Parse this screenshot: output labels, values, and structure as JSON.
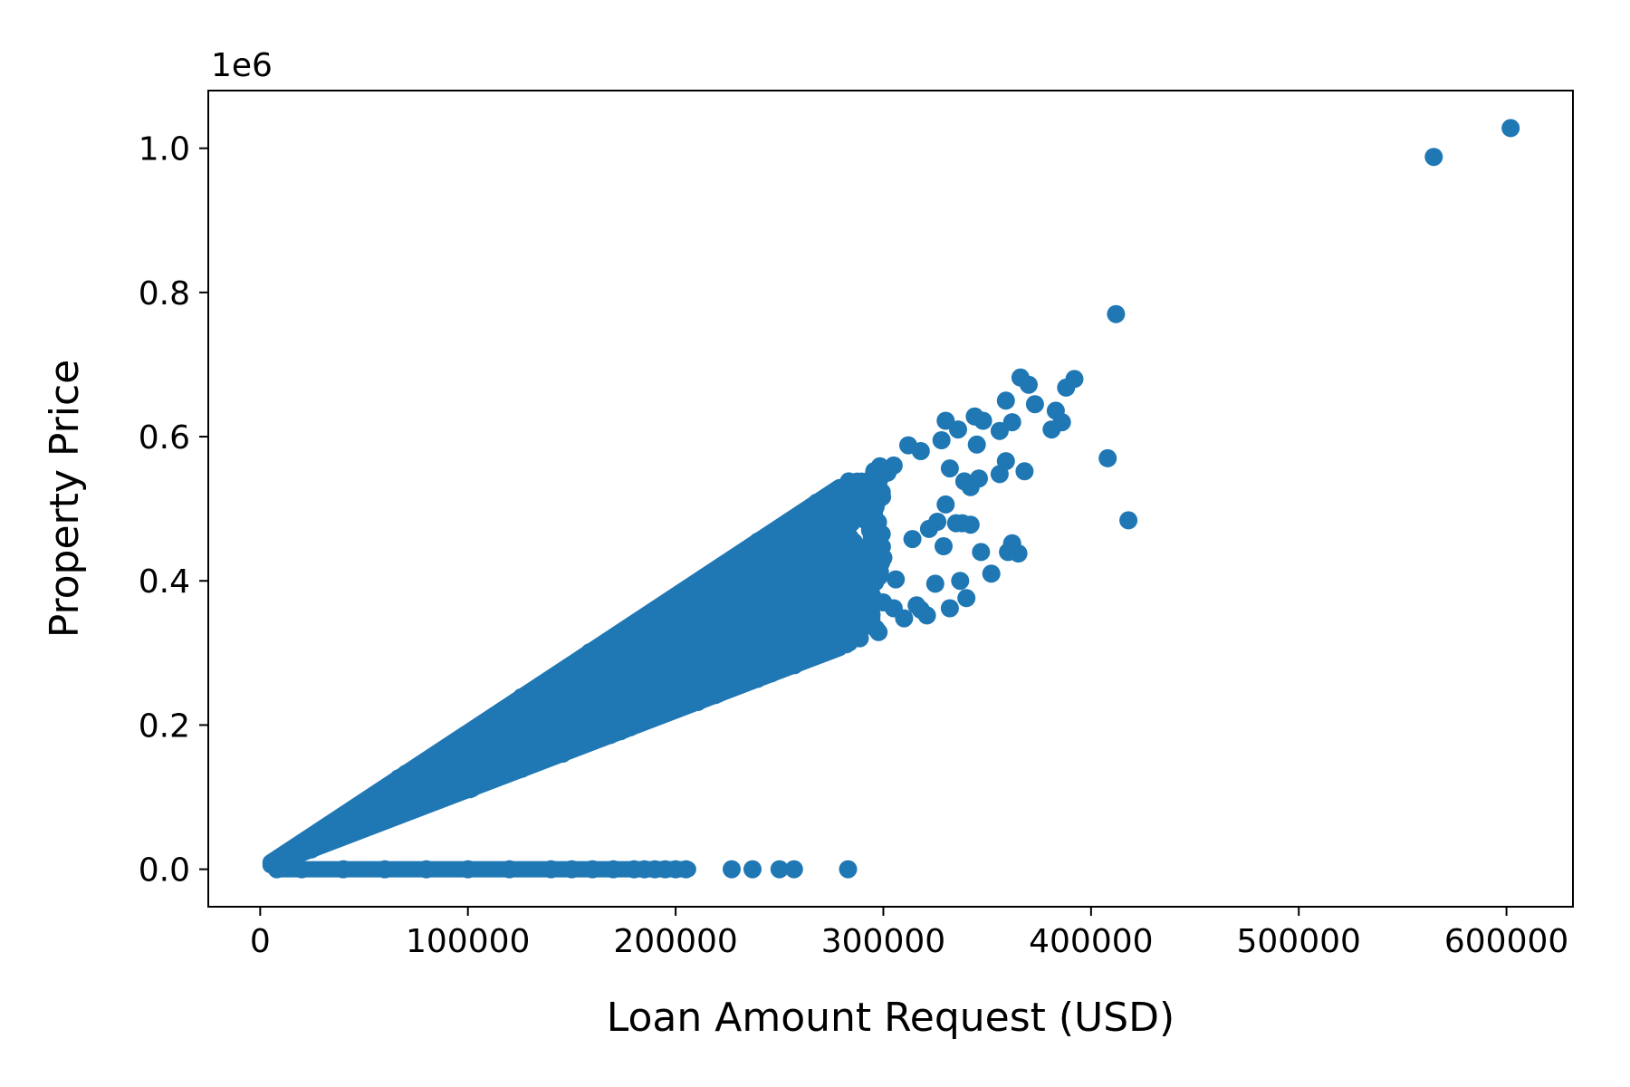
{
  "chart_data": {
    "type": "scatter",
    "xlabel": "Loan Amount Request (USD)",
    "ylabel": "Property Price",
    "y_offset_label": "1e6",
    "xlim": [
      -25000,
      632000
    ],
    "ylim": [
      -0.052,
      1.08
    ],
    "x_ticks": [
      0,
      100000,
      200000,
      300000,
      400000,
      500000,
      600000
    ],
    "x_tick_labels": [
      "0",
      "100000",
      "200000",
      "300000",
      "400000",
      "500000",
      "600000"
    ],
    "y_ticks": [
      0.0,
      0.2,
      0.4,
      0.6,
      0.8,
      1.0
    ],
    "y_tick_labels": [
      "0.0",
      "0.2",
      "0.4",
      "0.6",
      "0.8",
      "1.0"
    ],
    "grid": false,
    "color": "#1f77b4",
    "dense_region": {
      "note_free": true,
      "x_range": [
        5000,
        300000
      ],
      "upper_ratio": 1.9,
      "lower_ratio": 1.1,
      "density": 900
    },
    "zero_price_x": [
      8000,
      20000,
      40000,
      60000,
      80000,
      100000,
      120000,
      140000,
      150000,
      160000,
      170000,
      180000,
      185000,
      190000,
      195000,
      200000,
      205000,
      227000,
      237000,
      250000,
      257000,
      283000
    ],
    "series": [
      {
        "name": "",
        "x": [
          602000,
          565000,
          412000,
          418000,
          408000,
          392000,
          386000,
          383000,
          388000,
          381000,
          373000,
          366000,
          370000,
          368000,
          359000,
          356000,
          362000,
          359000,
          348000,
          344000,
          336000,
          330000,
          345000,
          339000,
          332000,
          328000,
          318000,
          312000,
          305000,
          302000,
          298000,
          335000,
          342000,
          347000,
          352000,
          329000,
          337000,
          360000,
          356000,
          362000,
          365000,
          340000,
          332000,
          325000,
          318000,
          321000,
          316000,
          310000,
          305000,
          346000,
          342000,
          338000,
          330000,
          326000,
          322000,
          314000,
          306000,
          300000,
          296000,
          292000
        ],
        "y": [
          1.028,
          0.988,
          0.77,
          0.484,
          0.57,
          0.68,
          0.62,
          0.636,
          0.668,
          0.61,
          0.645,
          0.682,
          0.672,
          0.552,
          0.65,
          0.608,
          0.62,
          0.566,
          0.622,
          0.628,
          0.61,
          0.622,
          0.589,
          0.538,
          0.556,
          0.595,
          0.58,
          0.588,
          0.56,
          0.55,
          0.54,
          0.48,
          0.478,
          0.44,
          0.41,
          0.448,
          0.4,
          0.44,
          0.548,
          0.452,
          0.438,
          0.376,
          0.362,
          0.396,
          0.36,
          0.352,
          0.366,
          0.348,
          0.362,
          0.542,
          0.53,
          0.48,
          0.506,
          0.482,
          0.472,
          0.458,
          0.402,
          0.432,
          0.398,
          0.38
        ]
      }
    ]
  }
}
